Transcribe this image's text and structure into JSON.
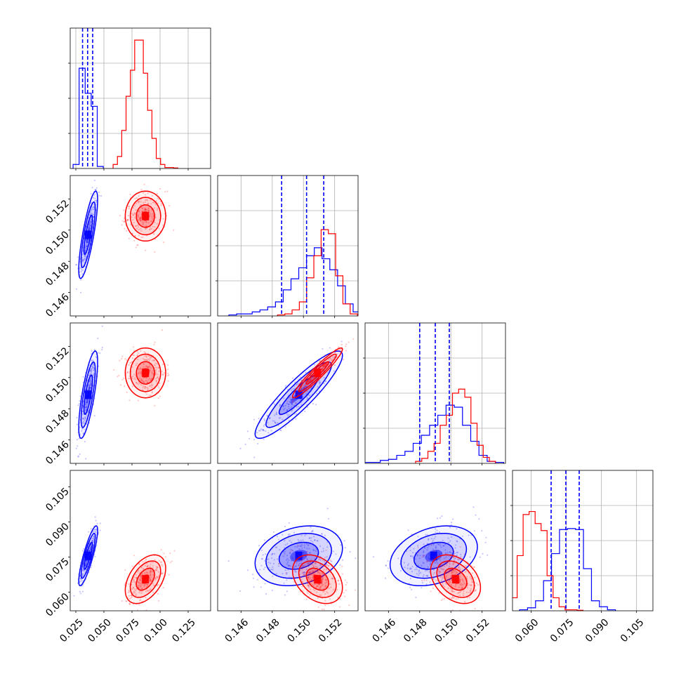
{
  "chart_data": {
    "type": "corner",
    "grid": true,
    "parameters": [
      {
        "range": [
          0.02,
          0.145
        ],
        "ticks": [
          0.025,
          0.05,
          0.075,
          0.1,
          0.125
        ],
        "tick_labels": [
          "0.025",
          "0.050",
          "0.075",
          "0.100",
          "0.125"
        ]
      },
      {
        "range": [
          0.1445,
          0.1535
        ],
        "ticks": [
          0.146,
          0.148,
          0.15,
          0.152
        ],
        "tick_labels": [
          "0.146",
          "0.148",
          "0.150",
          "0.152"
        ]
      },
      {
        "range": [
          0.1445,
          0.1535
        ],
        "ticks": [
          0.146,
          0.148,
          0.15,
          0.152
        ],
        "tick_labels": [
          "0.146",
          "0.148",
          "0.150",
          "0.152"
        ]
      },
      {
        "range": [
          0.052,
          0.112
        ],
        "ticks": [
          0.06,
          0.075,
          0.09,
          0.105
        ],
        "tick_labels": [
          "0.060",
          "0.075",
          "0.090",
          "0.105"
        ]
      }
    ],
    "series": [
      {
        "color": "#0000ff",
        "mean": [
          0.036,
          0.1497,
          0.1489,
          0.0755
        ],
        "std": [
          0.0042,
          0.0014,
          0.0014,
          0.0064
        ],
        "corr": [
          [
            1.0,
            0.8,
            0.75,
            0.85
          ],
          [
            0.8,
            1.0,
            0.9,
            0.25
          ],
          [
            0.75,
            0.9,
            1.0,
            0.3
          ],
          [
            0.85,
            0.25,
            0.3,
            1.0
          ]
        ],
        "quantiles": [
          [
            0.031,
            0.0355,
            0.04
          ],
          [
            0.1486,
            0.1502,
            0.1513
          ],
          [
            0.148,
            0.149,
            0.1499
          ],
          [
            0.0685,
            0.0748,
            0.0805
          ]
        ],
        "histograms": [
          [
            0.04,
            1.0,
            0.75,
            0.62,
            0.02
          ],
          [
            0.01,
            0.02,
            0.02,
            0.04,
            0.06,
            0.09,
            0.14,
            0.26,
            0.37,
            0.48,
            0.6,
            0.68,
            0.57,
            0.46,
            0.3,
            0.12,
            0.04,
            0.02
          ],
          [
            0.01,
            0.01,
            0.03,
            0.04,
            0.08,
            0.12,
            0.2,
            0.28,
            0.38,
            0.48,
            0.58,
            0.56,
            0.38,
            0.22,
            0.08,
            0.02,
            0.01
          ],
          [
            0.01,
            0.03,
            0.1,
            0.3,
            0.57,
            0.81,
            0.82,
            0.81,
            0.42,
            0.1,
            0.04,
            0.01
          ]
        ]
      },
      {
        "color": "#ff0000",
        "mean": [
          0.087,
          0.1509,
          0.1503,
          0.0655
        ],
        "std": [
          0.009,
          0.0008,
          0.0008,
          0.0052
        ],
        "corr": [
          [
            1.0,
            0.0,
            0.0,
            0.45
          ],
          [
            0.0,
            1.0,
            0.95,
            -0.35
          ],
          [
            0.0,
            0.95,
            1.0,
            -0.35
          ],
          [
            0.45,
            -0.35,
            -0.35,
            1.0
          ]
        ],
        "histograms": [
          [
            0.04,
            0.12,
            0.38,
            0.72,
            0.98,
            1.28,
            1.28,
            0.95,
            0.58,
            0.3,
            0.1,
            0.04,
            0.01,
            0.01,
            0.005
          ],
          [
            0.01,
            0.02,
            0.06,
            0.14,
            0.38,
            0.6,
            0.86,
            0.82,
            0.4,
            0.12,
            0.02
          ],
          [
            0.02,
            0.05,
            0.12,
            0.2,
            0.38,
            0.48,
            0.7,
            0.74,
            0.66,
            0.4,
            0.18,
            0.06,
            0.02
          ],
          [
            0.01,
            0.13,
            0.55,
            0.96,
            0.99,
            0.87,
            0.8,
            0.35,
            0.13,
            0.04,
            0.01,
            0.01,
            0.005
          ]
        ]
      }
    ]
  }
}
